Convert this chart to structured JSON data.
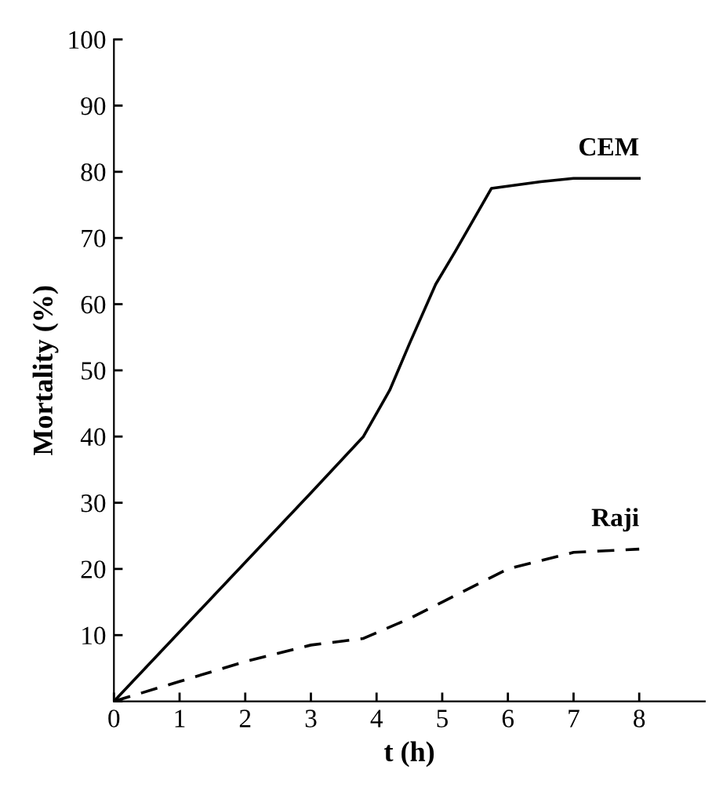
{
  "chart_data": {
    "type": "line",
    "xlabel": "t (h)",
    "ylabel": "Mortality (%)",
    "xlim": [
      0,
      9
    ],
    "xticks": [
      0,
      1,
      2,
      3,
      4,
      5,
      6,
      7,
      8
    ],
    "ylim": [
      0,
      100
    ],
    "yticks": [
      {
        "value": 0,
        "label": null
      },
      10,
      20,
      30,
      40,
      50,
      60,
      70,
      80,
      90,
      100
    ],
    "grid": false,
    "legend": false,
    "marker": "none",
    "series": [
      {
        "name": "CEM",
        "color": "#000000",
        "line_style": "solid",
        "x": [
          0,
          1,
          2,
          3,
          3.8,
          4.2,
          4.5,
          4.9,
          5.2,
          5.75,
          6.5,
          7,
          8
        ],
        "values": [
          0,
          10.5,
          21,
          31.5,
          40,
          47,
          54,
          63,
          68,
          77.5,
          78.5,
          79,
          79
        ]
      },
      {
        "name": "Raji",
        "color": "#000000",
        "line_style": "dashed",
        "x": [
          0,
          1,
          2,
          3,
          3.8,
          4.5,
          5,
          6,
          7,
          8
        ],
        "values": [
          0,
          3,
          6,
          8.5,
          9.5,
          12.5,
          15,
          20,
          22.5,
          23
        ]
      }
    ]
  }
}
